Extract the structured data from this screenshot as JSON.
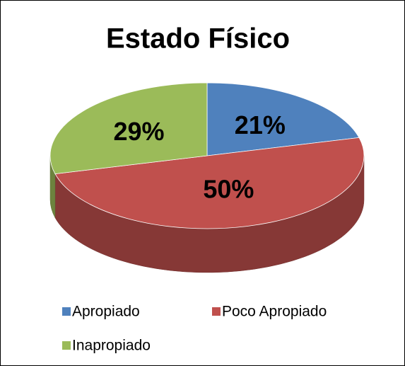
{
  "chart_data": {
    "type": "pie",
    "title": "Estado Físico",
    "categories": [
      "Apropiado",
      "Poco Apropiado",
      "Inapropiado"
    ],
    "values": [
      21,
      50,
      29
    ],
    "value_labels": [
      "21%",
      "50%",
      "29%"
    ],
    "colors": [
      "#4f81bd",
      "#c0504d",
      "#9bbb59"
    ],
    "legend": "bottom"
  }
}
